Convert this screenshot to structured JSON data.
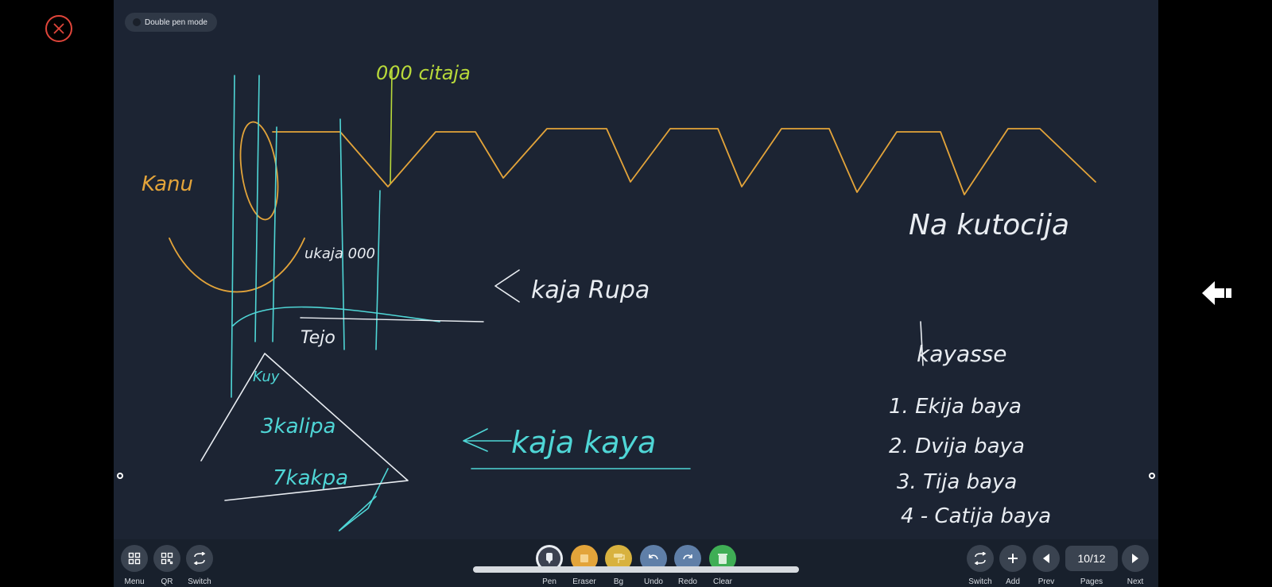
{
  "pen_mode": {
    "label": "Double pen mode"
  },
  "board_text": {
    "note_1": "000 citaja",
    "note_2": "Kanu",
    "note_3": "Na kutocija",
    "note_4": "ukaja 000",
    "note_5": "Tejo",
    "note_6": "kaja Rupa",
    "note_7": "Kuy",
    "note_8": "3kalipa",
    "note_9": "7kakpa",
    "note_10": "kaja kaya",
    "note_11": "kayasse",
    "note_12": "1. Ekija baya",
    "note_13": "2. Dvija baya",
    "note_14": "3. Tija baya",
    "note_15": "4 - Catija baya"
  },
  "left_toolbar": [
    {
      "label": "Menu",
      "icon": "grid-icon"
    },
    {
      "label": "QR",
      "icon": "qr-icon"
    },
    {
      "label": "Switch",
      "icon": "switch-icon"
    }
  ],
  "center_toolbar": [
    {
      "label": "Pen",
      "icon": "pen-icon"
    },
    {
      "label": "Eraser",
      "icon": "eraser-icon"
    },
    {
      "label": "Bg",
      "icon": "paint-roller-icon"
    },
    {
      "label": "Undo",
      "icon": "undo-icon"
    },
    {
      "label": "Redo",
      "icon": "redo-icon"
    },
    {
      "label": "Clear",
      "icon": "trash-icon"
    }
  ],
  "right_toolbar": [
    {
      "label": "Switch",
      "icon": "switch-icon"
    },
    {
      "label": "Add",
      "icon": "plus-icon"
    },
    {
      "label": "Prev",
      "icon": "prev-icon"
    },
    {
      "label": "Pages",
      "value": "10/12"
    },
    {
      "label": "Next",
      "icon": "next-icon"
    }
  ],
  "colors": {
    "board": "#1c2433",
    "orange_ink": "#e3a43a",
    "cyan_ink": "#4fd6d6",
    "white_ink": "#e9edf2",
    "green_ink": "#b8d93a",
    "close": "#e0453a"
  }
}
